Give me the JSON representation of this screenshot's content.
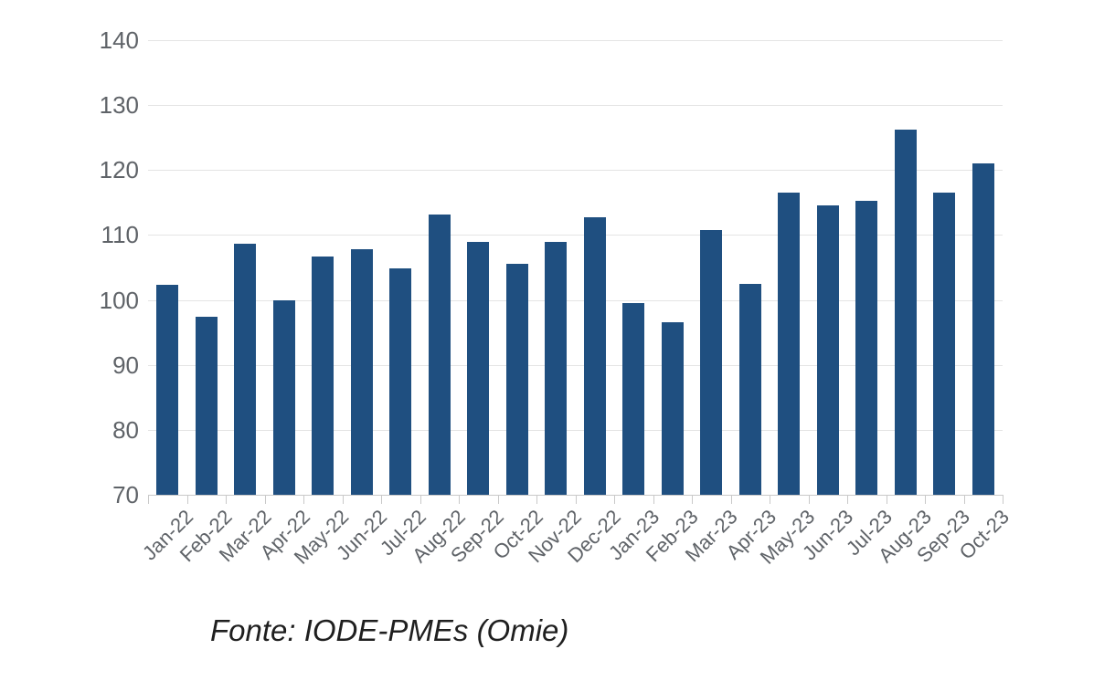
{
  "chart_data": {
    "type": "bar",
    "categories": [
      "Jan-22",
      "Feb-22",
      "Mar-22",
      "Apr-22",
      "May-22",
      "Jun-22",
      "Jul-22",
      "Aug-22",
      "Sep-22",
      "Oct-22",
      "Nov-22",
      "Dec-22",
      "Jan-23",
      "Feb-23",
      "Mar-23",
      "Apr-23",
      "May-23",
      "Jun-23",
      "Jul-23",
      "Aug-23",
      "Sep-23",
      "Oct-23"
    ],
    "values": [
      102.3,
      97.4,
      108.6,
      100.0,
      106.7,
      107.8,
      104.9,
      113.2,
      109.0,
      105.6,
      108.9,
      112.8,
      99.5,
      96.6,
      110.8,
      102.4,
      116.5,
      114.5,
      115.3,
      126.2,
      116.5,
      121.0
    ],
    "title": "",
    "xlabel": "",
    "ylabel": "",
    "ylim": [
      70,
      140
    ],
    "yticks": [
      70,
      80,
      90,
      100,
      110,
      120,
      130,
      140
    ],
    "grid": true,
    "legend": "none",
    "bar_color": "#1F4F80",
    "gridline_color": "#E4E4E4",
    "axis_color": "#C9C9C9",
    "tick_label_color": "#5F6368"
  },
  "caption": {
    "text": "Fonte: IODE-PMEs (Omie)"
  }
}
